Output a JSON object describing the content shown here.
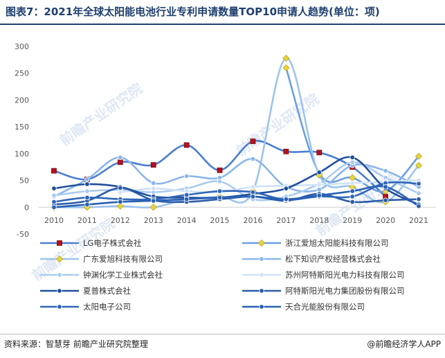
{
  "title": "图表7：2021年全球太阳能电池行业专利申请数量TOP10申请人趋势(单位：项)",
  "source": "资料来源：智慧芽 前瞻产业研究院整理",
  "brand": "@前瞻经济学人APP",
  "watermark": "前瞻产业研究院",
  "chart_data": {
    "type": "line",
    "title": "图表7：2021年全球太阳能电池行业专利申请数量TOP10申请人趋势(单位：项)",
    "xlabel": "",
    "ylabel": "",
    "categories": [
      "2010",
      "2011",
      "2012",
      "2013",
      "2014",
      "2015",
      "2016",
      "2017",
      "2018",
      "2019",
      "2020",
      "2021"
    ],
    "yticks": [
      "-50",
      "0",
      "50",
      "100",
      "150",
      "200",
      "250",
      "300"
    ],
    "ylim": [
      -50,
      300
    ],
    "grid": false,
    "legend_position": "bottom",
    "series": [
      {
        "name": "LG电子株式会社",
        "color": "#4a7ed0",
        "marker": "square",
        "values": [
          68,
          52,
          84,
          79,
          116,
          69,
          123,
          104,
          102,
          75,
          20,
          null
        ]
      },
      {
        "name": "浙江爱旭太阳能科技有限公司",
        "color": "#6b9fe0",
        "marker": "diamond",
        "values": [
          null,
          null,
          null,
          null,
          null,
          null,
          null,
          260,
          63,
          55,
          30,
          95
        ]
      },
      {
        "name": "广东爱旭科技有限公司",
        "color": "#9cc3ee",
        "marker": "diamond",
        "values": [
          0,
          0,
          2,
          0,
          15,
          20,
          30,
          278,
          60,
          38,
          10,
          78
        ]
      },
      {
        "name": "松下知识产权经营株式会社",
        "color": "#8ab6ea",
        "marker": "circle",
        "values": [
          20,
          52,
          93,
          45,
          58,
          55,
          90,
          38,
          33,
          78,
          68,
          38
        ]
      },
      {
        "name": "钟渊化学工业株式会社",
        "color": "#a9cbf0",
        "marker": "circle",
        "values": [
          22,
          30,
          32,
          28,
          35,
          48,
          15,
          20,
          44,
          84,
          55,
          26
        ]
      },
      {
        "name": "苏州阿特斯阳光电力科技有限公司",
        "color": "#cfe2f8",
        "marker": "circle",
        "values": [
          null,
          null,
          28,
          35,
          30,
          28,
          38,
          40,
          42,
          45,
          48,
          50
        ]
      },
      {
        "name": "夏普株式会社",
        "color": "#1f4f9c",
        "marker": "circle",
        "values": [
          35,
          43,
          38,
          20,
          18,
          18,
          25,
          35,
          65,
          93,
          35,
          5
        ]
      },
      {
        "name": "阿特斯阳光电力集团股份有限公司",
        "color": "#2a5ca8",
        "marker": "circle",
        "values": [
          5,
          12,
          36,
          13,
          10,
          15,
          20,
          12,
          25,
          10,
          13,
          15
        ]
      },
      {
        "name": "太阳电子公司",
        "color": "#3066b8",
        "marker": "circle",
        "values": [
          10,
          18,
          15,
          15,
          23,
          30,
          28,
          14,
          20,
          20,
          45,
          44
        ]
      },
      {
        "name": "天合光能股份有限公司",
        "color": "#2860b4",
        "marker": "circle",
        "values": [
          0,
          5,
          10,
          12,
          15,
          18,
          20,
          15,
          22,
          30,
          38,
          2
        ]
      }
    ]
  }
}
